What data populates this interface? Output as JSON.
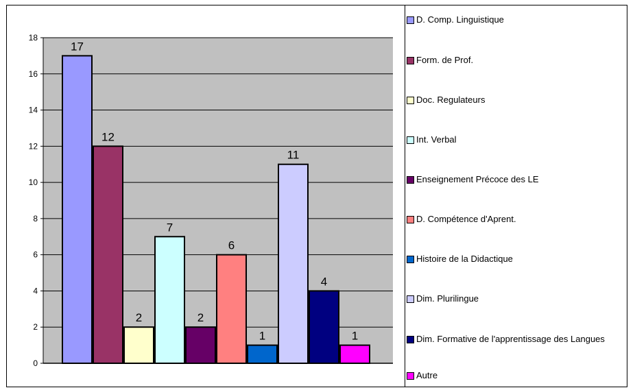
{
  "chart_data": {
    "type": "bar",
    "ylim": [
      0,
      18
    ],
    "yticks": [
      0,
      2,
      4,
      6,
      8,
      10,
      12,
      14,
      16,
      18
    ],
    "grid": true,
    "legend_position": "right",
    "series": [
      {
        "name": "D. Comp. Linguistique",
        "value": 17,
        "color": "#9999ff"
      },
      {
        "name": "Form. de Prof.",
        "value": 12,
        "color": "#993366"
      },
      {
        "name": "Doc. Regulateurs",
        "value": 2,
        "color": "#ffffcc"
      },
      {
        "name": "Int. Verbal",
        "value": 7,
        "color": "#ccffff"
      },
      {
        "name": "Enseignement Précoce des LE",
        "value": 2,
        "color": "#660066"
      },
      {
        "name": "D. Compétence d'Aprent.",
        "value": 6,
        "color": "#ff8080"
      },
      {
        "name": "Histoire de la Didactique",
        "value": 1,
        "color": "#0066cc"
      },
      {
        "name": "Dim. Plurilingue",
        "value": 11,
        "color": "#ccccff"
      },
      {
        "name": "Dim. Formative de l'apprentissage des Langues",
        "value": 4,
        "color": "#000080"
      },
      {
        "name": "Autre",
        "value": 1,
        "color": "#ff00ff"
      }
    ]
  }
}
